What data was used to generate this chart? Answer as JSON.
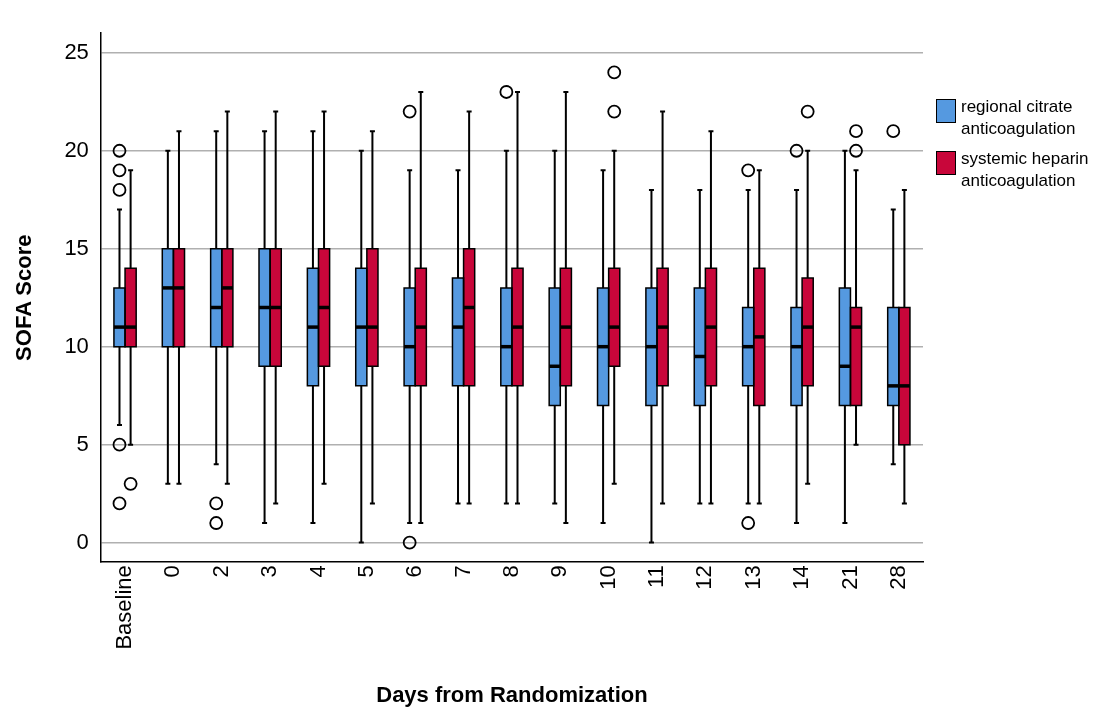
{
  "chart_data": {
    "type": "box",
    "xlabel": "Days from Randomization",
    "ylabel": "SOFA Score",
    "categories": [
      "Baseline",
      "0",
      "2",
      "3",
      "4",
      "5",
      "6",
      "7",
      "8",
      "9",
      "10",
      "11",
      "12",
      "13",
      "14",
      "21",
      "28"
    ],
    "ylim": [
      -1,
      26
    ],
    "yticks": [
      0,
      5,
      10,
      15,
      20,
      25
    ],
    "grid": "y",
    "legend": "top right",
    "series": [
      {
        "name": "regional citrate anticoagulation",
        "color": "#5599e0",
        "boxes": [
          {
            "low": 6,
            "q1": 10,
            "median": 11,
            "q3": 13,
            "high": 17,
            "outliers": [
              20,
              19,
              18,
              5,
              2
            ]
          },
          {
            "low": 3,
            "q1": 10,
            "median": 13,
            "q3": 15,
            "high": 20
          },
          {
            "low": 4,
            "q1": 10,
            "median": 12,
            "q3": 15,
            "high": 21,
            "outliers": [
              2,
              1
            ]
          },
          {
            "low": 1,
            "q1": 9,
            "median": 12,
            "q3": 15,
            "high": 21
          },
          {
            "low": 1,
            "q1": 8,
            "median": 11,
            "q3": 14,
            "high": 21
          },
          {
            "low": 0,
            "q1": 8,
            "median": 11,
            "q3": 14,
            "high": 20
          },
          {
            "low": 1,
            "q1": 8,
            "median": 10,
            "q3": 13,
            "high": 19,
            "outliers": [
              22,
              0
            ]
          },
          {
            "low": 2,
            "q1": 8,
            "median": 11,
            "q3": 13.5,
            "high": 19
          },
          {
            "low": 2,
            "q1": 8,
            "median": 10,
            "q3": 13,
            "high": 20,
            "outliers": [
              23
            ]
          },
          {
            "low": 2,
            "q1": 7,
            "median": 9,
            "q3": 13,
            "high": 20
          },
          {
            "low": 1,
            "q1": 7,
            "median": 10,
            "q3": 13,
            "high": 19
          },
          {
            "low": 0,
            "q1": 7,
            "median": 10,
            "q3": 13,
            "high": 18
          },
          {
            "low": 2,
            "q1": 7,
            "median": 9.5,
            "q3": 13,
            "high": 18
          },
          {
            "low": 2,
            "q1": 8,
            "median": 10,
            "q3": 12,
            "high": 18,
            "outliers": [
              19,
              1
            ]
          },
          {
            "low": 1,
            "q1": 7,
            "median": 10,
            "q3": 12,
            "high": 18,
            "outliers": [
              20
            ]
          },
          {
            "low": 1,
            "q1": 7,
            "median": 9,
            "q3": 13,
            "high": 20
          },
          {
            "low": 4,
            "q1": 7,
            "median": 8,
            "q3": 12,
            "high": 17,
            "outliers": [
              21
            ]
          }
        ]
      },
      {
        "name": "systemic heparin anticoagulation",
        "color": "#c8063a",
        "boxes": [
          {
            "low": 5,
            "q1": 10,
            "median": 11,
            "q3": 14,
            "high": 19,
            "outliers": [
              3
            ]
          },
          {
            "low": 3,
            "q1": 10,
            "median": 13,
            "q3": 15,
            "high": 21
          },
          {
            "low": 3,
            "q1": 10,
            "median": 13,
            "q3": 15,
            "high": 22
          },
          {
            "low": 2,
            "q1": 9,
            "median": 12,
            "q3": 15,
            "high": 22
          },
          {
            "low": 3,
            "q1": 9,
            "median": 12,
            "q3": 15,
            "high": 22
          },
          {
            "low": 2,
            "q1": 9,
            "median": 11,
            "q3": 15,
            "high": 21
          },
          {
            "low": 1,
            "q1": 8,
            "median": 11,
            "q3": 14,
            "high": 23
          },
          {
            "low": 2,
            "q1": 8,
            "median": 12,
            "q3": 15,
            "high": 22
          },
          {
            "low": 2,
            "q1": 8,
            "median": 11,
            "q3": 14,
            "high": 23
          },
          {
            "low": 1,
            "q1": 8,
            "median": 11,
            "q3": 14,
            "high": 23
          },
          {
            "low": 3,
            "q1": 9,
            "median": 11,
            "q3": 14,
            "high": 20,
            "outliers": [
              24,
              22
            ]
          },
          {
            "low": 2,
            "q1": 8,
            "median": 11,
            "q3": 14,
            "high": 22
          },
          {
            "low": 2,
            "q1": 8,
            "median": 11,
            "q3": 14,
            "high": 21
          },
          {
            "low": 2,
            "q1": 7,
            "median": 10.5,
            "q3": 14,
            "high": 19
          },
          {
            "low": 3,
            "q1": 8,
            "median": 11,
            "q3": 13.5,
            "high": 20,
            "outliers": [
              22
            ]
          },
          {
            "low": 5,
            "q1": 7,
            "median": 11,
            "q3": 12,
            "high": 19,
            "outliers": [
              21,
              20
            ]
          },
          {
            "low": 2,
            "q1": 5,
            "median": 8,
            "q3": 12,
            "high": 18
          }
        ]
      }
    ]
  }
}
